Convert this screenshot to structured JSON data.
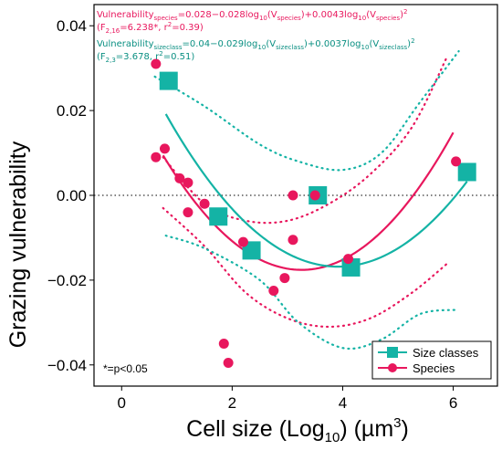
{
  "chart_data": {
    "type": "scatter",
    "xlabel_main": "Cell size (Log",
    "xlabel_sub": "10",
    "xlabel_end": ") (µm",
    "xlabel_sup": "3",
    "xlabel_close": ")",
    "ylabel": "Grazing vulnerability",
    "xlim": [
      -0.5,
      6.8
    ],
    "ylim": [
      -0.045,
      0.045
    ],
    "x_ticks": [
      0,
      2,
      4,
      6
    ],
    "y_ticks": [
      -0.04,
      -0.02,
      0.0,
      0.02,
      0.04
    ],
    "x_tick_labels": [
      "0",
      "2",
      "4",
      "6"
    ],
    "y_tick_labels": [
      "−0.04",
      "−0.02",
      "0.00",
      "0.02",
      "0.04"
    ],
    "zero_line": true,
    "colors": {
      "species": "#e8175d",
      "sizeclass": "#14b3a5"
    },
    "series": [
      {
        "name": "Size classes",
        "marker": "square",
        "points": [
          {
            "x": 0.85,
            "y": 0.027
          },
          {
            "x": 1.75,
            "y": -0.005
          },
          {
            "x": 2.35,
            "y": -0.013
          },
          {
            "x": 3.55,
            "y": 0.0
          },
          {
            "x": 4.15,
            "y": -0.017
          },
          {
            "x": 6.25,
            "y": 0.0055
          }
        ]
      },
      {
        "name": "Species",
        "marker": "circle",
        "points": [
          {
            "x": 0.62,
            "y": 0.031
          },
          {
            "x": 0.62,
            "y": 0.009
          },
          {
            "x": 0.78,
            "y": 0.011
          },
          {
            "x": 1.05,
            "y": 0.004
          },
          {
            "x": 1.2,
            "y": 0.003
          },
          {
            "x": 1.2,
            "y": -0.004
          },
          {
            "x": 1.5,
            "y": -0.002
          },
          {
            "x": 1.85,
            "y": -0.035
          },
          {
            "x": 1.93,
            "y": -0.0395
          },
          {
            "x": 2.2,
            "y": -0.011
          },
          {
            "x": 2.75,
            "y": -0.0225
          },
          {
            "x": 2.95,
            "y": -0.0195
          },
          {
            "x": 3.1,
            "y": 0.0
          },
          {
            "x": 3.1,
            "y": -0.0105
          },
          {
            "x": 3.5,
            "y": 0.0
          },
          {
            "x": 4.1,
            "y": -0.015
          },
          {
            "x": 6.05,
            "y": 0.008
          }
        ]
      }
    ],
    "fits": [
      {
        "series": "Species",
        "intercept": 0.028,
        "b1": -0.028,
        "b2": 0.0043,
        "x_range": [
          0.75,
          6.0
        ],
        "ci_upper": [
          [
            0.75,
            0.009
          ],
          [
            1.5,
            -0.002
          ],
          [
            2.25,
            -0.006
          ],
          [
            3.0,
            -0.006
          ],
          [
            3.75,
            -0.002
          ],
          [
            4.5,
            0.005
          ],
          [
            5.25,
            0.016
          ],
          [
            5.9,
            0.033
          ]
        ],
        "ci_lower": [
          [
            0.75,
            -0.003
          ],
          [
            1.5,
            -0.012
          ],
          [
            2.25,
            -0.023
          ],
          [
            3.0,
            -0.029
          ],
          [
            3.75,
            -0.031
          ],
          [
            4.5,
            -0.029
          ],
          [
            5.25,
            -0.023
          ],
          [
            5.9,
            -0.016
          ]
        ]
      },
      {
        "series": "Size classes",
        "intercept": 0.04,
        "b1": -0.029,
        "b2": 0.0037,
        "x_range": [
          0.8,
          6.25
        ],
        "ci_upper": [
          [
            0.6,
            0.028
          ],
          [
            1.5,
            0.021
          ],
          [
            2.5,
            0.012
          ],
          [
            3.2,
            0.008
          ],
          [
            4.0,
            0.006
          ],
          [
            4.7,
            0.01
          ],
          [
            5.4,
            0.022
          ],
          [
            6.1,
            0.034
          ]
        ],
        "ci_lower": [
          [
            0.8,
            -0.0095
          ],
          [
            1.5,
            -0.0125
          ],
          [
            2.5,
            -0.02
          ],
          [
            3.2,
            -0.03
          ],
          [
            4.0,
            -0.036
          ],
          [
            4.7,
            -0.034
          ],
          [
            5.4,
            -0.028
          ],
          [
            6.05,
            -0.027
          ]
        ]
      }
    ],
    "equations": {
      "species_line1": "Vulnerability",
      "species_line1_sub": "species",
      "species_line1_rest": "=0.028−0.028log",
      "species_log_sub": "10",
      "species_term1_paren": "(V",
      "species_V_sub": "species",
      "species_term1_close": ")+0.0043log",
      "species_term2_paren": "(V",
      "species_term2_close": ")",
      "species_term2_sup": "2",
      "species_line2_a": "(F",
      "species_line2_sub": "2,16",
      "species_line2_b": "=6.238*, r",
      "species_line2_sup": "2",
      "species_line2_c": "=0.39)",
      "size_line1": "Vulnerability",
      "size_line1_sub": "sizeclass",
      "size_line1_rest": "=0.04−0.029log",
      "size_log_sub": "10",
      "size_term1_paren": "(V",
      "size_V_sub": "sizeclass",
      "size_term1_close": ")+0.0037log",
      "size_term2_paren": "(V",
      "size_term2_close": ")",
      "size_term2_sup": "2",
      "size_line2_a": "(F",
      "size_line2_sub": "2,3",
      "size_line2_b": "=3.678, r",
      "size_line2_sup": "2",
      "size_line2_c": "=0.51)"
    },
    "legend": {
      "position": "bottom-right",
      "items": [
        {
          "label": "Size classes",
          "marker": "square"
        },
        {
          "label": "Species",
          "marker": "circle"
        }
      ]
    },
    "note": "*=p<0.05"
  }
}
